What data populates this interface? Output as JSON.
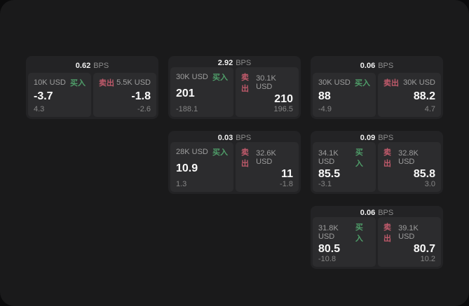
{
  "colors": {
    "buy_green": "#4f9d69",
    "sell_red": "#c05a6b"
  },
  "labels": {
    "bps": "BPS",
    "buy": "买入",
    "sell": "卖出"
  },
  "cards": [
    {
      "col": 1,
      "row": 1,
      "bps": "0.62",
      "buy": {
        "amount": "10K USD",
        "price": "-3.7",
        "delta": "4.3"
      },
      "sell": {
        "amount": "5.5K USD",
        "price": "-1.8",
        "delta": "-2.6"
      }
    },
    {
      "col": 2,
      "row": 1,
      "bps": "2.92",
      "buy": {
        "amount": "30K USD",
        "price": "201",
        "delta": "-188.1"
      },
      "sell": {
        "amount": "30.1K USD",
        "price": "210",
        "delta": "196.5"
      }
    },
    {
      "col": 3,
      "row": 1,
      "bps": "0.06",
      "buy": {
        "amount": "30K USD",
        "price": "88",
        "delta": "-4.9"
      },
      "sell": {
        "amount": "30K USD",
        "price": "88.2",
        "delta": "4.7"
      }
    },
    {
      "col": 2,
      "row": 2,
      "bps": "0.03",
      "buy": {
        "amount": "28K USD",
        "price": "10.9",
        "delta": "1.3"
      },
      "sell": {
        "amount": "32.6K USD",
        "price": "11",
        "delta": "-1.8"
      }
    },
    {
      "col": 3,
      "row": 2,
      "bps": "0.09",
      "buy": {
        "amount": "34.1K USD",
        "price": "85.5",
        "delta": "-3.1"
      },
      "sell": {
        "amount": "32.8K USD",
        "price": "85.8",
        "delta": "3.0"
      }
    },
    {
      "col": 3,
      "row": 3,
      "bps": "0.06",
      "buy": {
        "amount": "31.8K USD",
        "price": "80.5",
        "delta": "-10.8"
      },
      "sell": {
        "amount": "39.1K USD",
        "price": "80.7",
        "delta": "10.2"
      }
    }
  ]
}
